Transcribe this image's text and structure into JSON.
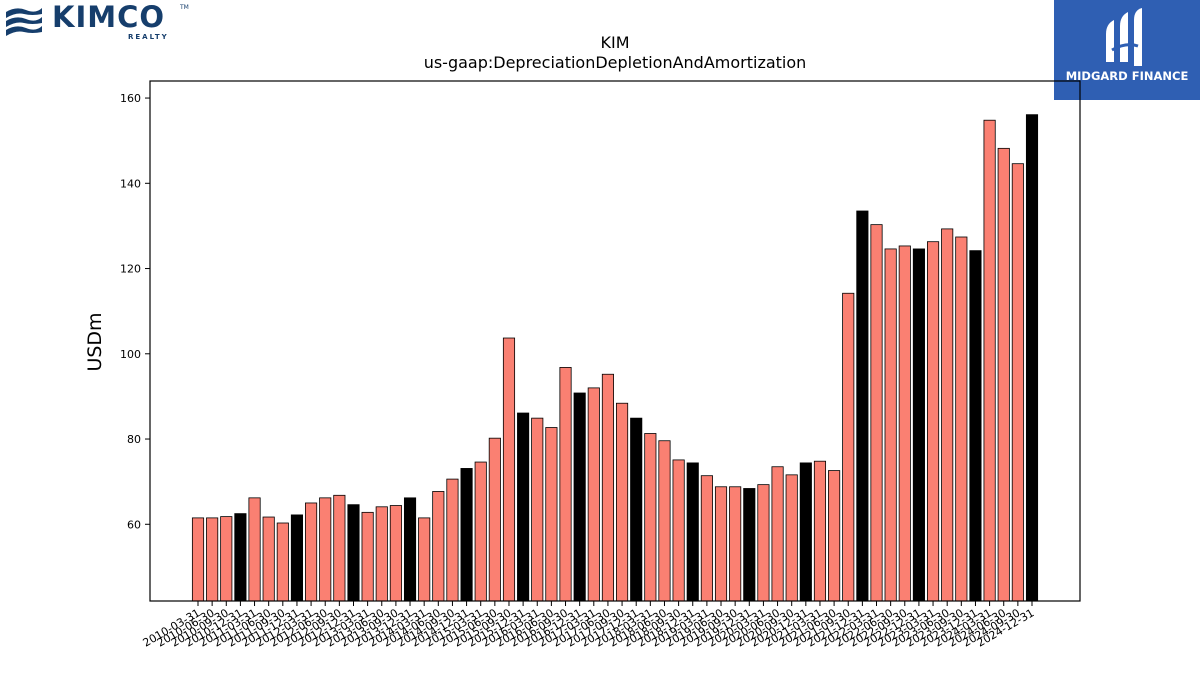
{
  "logos": {
    "left": {
      "name": "KIMCO",
      "sub": "REALTY",
      "tm": "TM",
      "color": "#163e6c"
    },
    "right": {
      "name": "MIDGARD FINANCE",
      "bg": "#2f5fb3"
    }
  },
  "chart_data": {
    "type": "bar",
    "title": "KIM",
    "subtitle": "us-gaap:DepreciationDepletionAndAmortization",
    "ylabel": "USDm",
    "xlabel": "",
    "ylim": [
      42,
      164
    ],
    "yticks": [
      60,
      80,
      100,
      120,
      140,
      160
    ],
    "colors": {
      "quarter": "#fa8072",
      "year_end": "#000000"
    },
    "categories": [
      "2010-03-31",
      "2010-06-30",
      "2010-09-30",
      "2010-12-31",
      "2011-03-31",
      "2011-06-30",
      "2011-09-30",
      "2011-12-31",
      "2012-03-31",
      "2012-06-30",
      "2012-09-30",
      "2012-12-31",
      "2013-03-31",
      "2013-06-30",
      "2013-09-30",
      "2013-12-31",
      "2014-03-31",
      "2014-06-30",
      "2014-09-30",
      "2014-12-31",
      "2015-03-31",
      "2015-06-30",
      "2015-09-30",
      "2015-12-31",
      "2016-03-31",
      "2016-06-30",
      "2016-09-30",
      "2016-12-31",
      "2017-03-31",
      "2017-06-30",
      "2017-09-30",
      "2017-12-31",
      "2018-03-31",
      "2018-06-30",
      "2018-09-30",
      "2018-12-31",
      "2019-03-31",
      "2019-06-30",
      "2019-09-30",
      "2019-12-31",
      "2020-03-31",
      "2020-06-30",
      "2020-09-30",
      "2020-12-31",
      "2021-03-31",
      "2021-06-30",
      "2021-09-30",
      "2021-12-31",
      "2022-03-31",
      "2022-06-30",
      "2022-09-30",
      "2022-12-31",
      "2023-03-31",
      "2023-06-30",
      "2023-09-30",
      "2023-12-31",
      "2024-03-31",
      "2024-06-30",
      "2024-09-30",
      "2024-12-31"
    ],
    "values": [
      61.5,
      61.5,
      61.8,
      62.5,
      66.2,
      61.7,
      60.3,
      62.2,
      65.0,
      66.2,
      66.8,
      64.6,
      62.8,
      64.1,
      64.4,
      66.2,
      61.5,
      67.7,
      70.6,
      73.1,
      74.6,
      80.2,
      103.7,
      86.1,
      84.9,
      82.7,
      96.8,
      90.8,
      92.0,
      95.2,
      88.4,
      84.9,
      81.3,
      79.6,
      75.1,
      74.4,
      71.4,
      68.8,
      68.8,
      68.4,
      69.3,
      73.5,
      71.6,
      74.4,
      74.8,
      72.6,
      114.2,
      133.5,
      130.3,
      124.6,
      125.3,
      124.6,
      126.3,
      129.3,
      127.4,
      124.2,
      154.8,
      148.2,
      144.6,
      156.1
    ],
    "year_end_flags": [
      false,
      false,
      false,
      true,
      false,
      false,
      false,
      true,
      false,
      false,
      false,
      true,
      false,
      false,
      false,
      true,
      false,
      false,
      false,
      true,
      false,
      false,
      false,
      true,
      false,
      false,
      false,
      true,
      false,
      false,
      false,
      true,
      false,
      false,
      false,
      true,
      false,
      false,
      false,
      true,
      false,
      false,
      false,
      true,
      false,
      false,
      false,
      true,
      false,
      false,
      false,
      true,
      false,
      false,
      false,
      true,
      false,
      false,
      false,
      true
    ]
  }
}
